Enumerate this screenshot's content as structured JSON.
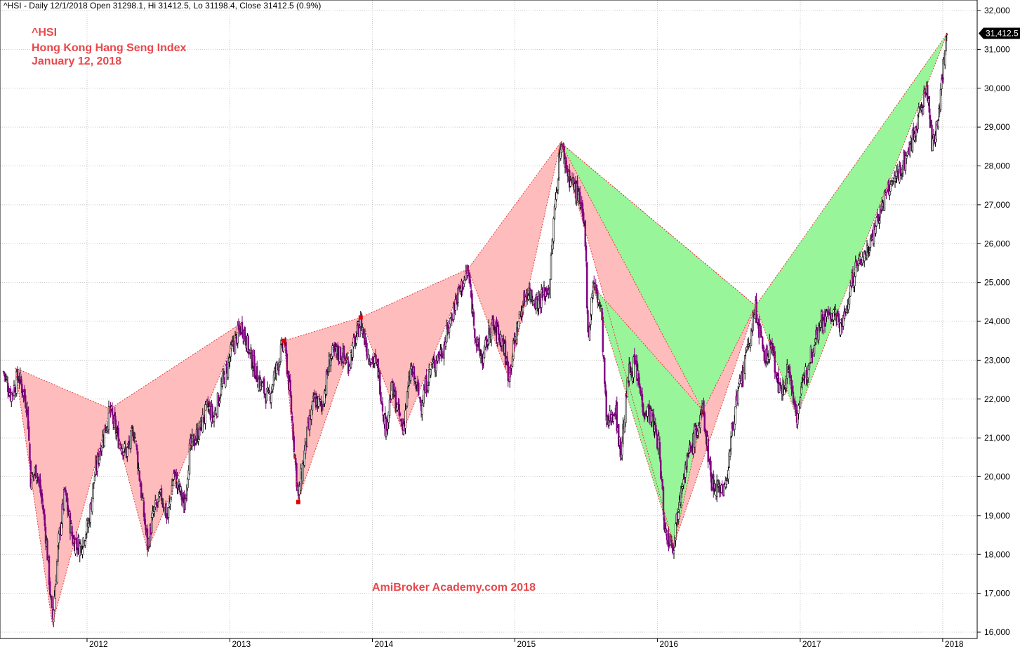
{
  "header": {
    "text": "^HSI - Daily 12/1/2018 Open 31298.1, Hi 31412.5, Lo 31198.4, Close 31412.5 (0.9%)"
  },
  "annotations": {
    "symbol": "^HSI",
    "name": "Hong Kong Hang Seng Index",
    "date": "January 12, 2018"
  },
  "watermark": "AmiBroker Academy.com 2018",
  "colors": {
    "bearish_fill": "#ffbcbc",
    "bullish_fill": "#99f599",
    "price_down": "#800080",
    "price_up": "#000000",
    "pattern_line": "#e03030",
    "grid": "#c8c8c8",
    "text_accent": "#e8484c"
  },
  "chart_data": {
    "type": "candlestick",
    "title": "",
    "xlabel": "",
    "ylabel": "",
    "ylim": [
      16000,
      32000
    ],
    "grid": true,
    "x_ticks": [
      "2012",
      "2013",
      "2014",
      "2015",
      "2016",
      "2017",
      "2018"
    ],
    "y_ticks": [
      "16,000",
      "17,000",
      "18,000",
      "19,000",
      "20,000",
      "21,000",
      "22,000",
      "23,000",
      "24,000",
      "25,000",
      "26,000",
      "27,000",
      "28,000",
      "29,000",
      "30,000",
      "31,000",
      "32,000"
    ],
    "last_close_label": "31,412.5",
    "last_close": 31412.5,
    "price_path": [
      [
        "2011-06-01",
        22700
      ],
      [
        "2011-06-20",
        22100
      ],
      [
        "2011-07-10",
        22600
      ],
      [
        "2011-08-01",
        21800
      ],
      [
        "2011-08-10",
        19900
      ],
      [
        "2011-08-25",
        20200
      ],
      [
        "2011-09-10",
        19200
      ],
      [
        "2011-09-20",
        18200
      ],
      [
        "2011-10-04",
        16250
      ],
      [
        "2011-10-20",
        18300
      ],
      [
        "2011-11-05",
        19600
      ],
      [
        "2011-11-25",
        18400
      ],
      [
        "2011-12-15",
        18200
      ],
      [
        "2012-01-05",
        18800
      ],
      [
        "2012-01-20",
        20000
      ],
      [
        "2012-02-05",
        20800
      ],
      [
        "2012-02-29",
        21700
      ],
      [
        "2012-03-20",
        21000
      ],
      [
        "2012-04-10",
        20600
      ],
      [
        "2012-05-01",
        21200
      ],
      [
        "2012-05-20",
        19500
      ],
      [
        "2012-06-04",
        18200
      ],
      [
        "2012-06-20",
        19100
      ],
      [
        "2012-07-10",
        19500
      ],
      [
        "2012-07-25",
        18900
      ],
      [
        "2012-08-10",
        20100
      ],
      [
        "2012-08-30",
        19500
      ],
      [
        "2012-09-06",
        19200
      ],
      [
        "2012-09-20",
        20700
      ],
      [
        "2012-10-15",
        21200
      ],
      [
        "2012-11-05",
        21800
      ],
      [
        "2012-11-20",
        21500
      ],
      [
        "2012-12-10",
        22300
      ],
      [
        "2013-01-10",
        23400
      ],
      [
        "2013-02-01",
        23900
      ],
      [
        "2013-02-20",
        23200
      ],
      [
        "2013-03-15",
        22500
      ],
      [
        "2013-04-10",
        22000
      ],
      [
        "2013-04-25",
        22600
      ],
      [
        "2013-05-20",
        23500
      ],
      [
        "2013-06-05",
        22000
      ],
      [
        "2013-06-25",
        19430
      ],
      [
        "2013-07-15",
        20900
      ],
      [
        "2013-08-05",
        22000
      ],
      [
        "2013-08-25",
        21800
      ],
      [
        "2013-09-15",
        23100
      ],
      [
        "2013-10-10",
        23200
      ],
      [
        "2013-11-01",
        22900
      ],
      [
        "2013-12-02",
        24000
      ],
      [
        "2013-12-20",
        23200
      ],
      [
        "2014-01-15",
        22800
      ],
      [
        "2014-02-04",
        21200
      ],
      [
        "2014-02-20",
        22300
      ],
      [
        "2014-03-20",
        21200
      ],
      [
        "2014-04-10",
        22800
      ],
      [
        "2014-05-05",
        21900
      ],
      [
        "2014-06-01",
        22800
      ],
      [
        "2014-07-01",
        23300
      ],
      [
        "2014-08-01",
        24500
      ],
      [
        "2014-09-03",
        25300
      ],
      [
        "2014-09-25",
        23400
      ],
      [
        "2014-10-10",
        23000
      ],
      [
        "2014-11-01",
        23900
      ],
      [
        "2014-12-01",
        23500
      ],
      [
        "2014-12-16",
        22600
      ],
      [
        "2015-01-10",
        24000
      ],
      [
        "2015-02-01",
        24800
      ],
      [
        "2015-03-01",
        24500
      ],
      [
        "2015-03-31",
        24900
      ],
      [
        "2015-04-10",
        26500
      ],
      [
        "2015-04-28",
        28600
      ],
      [
        "2015-05-20",
        27700
      ],
      [
        "2015-06-10",
        27300
      ],
      [
        "2015-06-30",
        26300
      ],
      [
        "2015-07-08",
        23500
      ],
      [
        "2015-07-20",
        25000
      ],
      [
        "2015-08-10",
        24300
      ],
      [
        "2015-08-24",
        21300
      ],
      [
        "2015-09-15",
        21800
      ],
      [
        "2015-09-29",
        20550
      ],
      [
        "2015-10-20",
        22700
      ],
      [
        "2015-11-05",
        22900
      ],
      [
        "2015-11-25",
        21800
      ],
      [
        "2015-12-15",
        21600
      ],
      [
        "2016-01-05",
        20800
      ],
      [
        "2016-01-21",
        18550
      ],
      [
        "2016-02-12",
        18300
      ],
      [
        "2016-03-01",
        19800
      ],
      [
        "2016-03-20",
        20500
      ],
      [
        "2016-04-27",
        21700
      ],
      [
        "2016-05-20",
        19800
      ],
      [
        "2016-06-24",
        19700
      ],
      [
        "2016-07-15",
        21600
      ],
      [
        "2016-08-10",
        22800
      ],
      [
        "2016-09-09",
        24350
      ],
      [
        "2016-09-30",
        23000
      ],
      [
        "2016-10-20",
        23400
      ],
      [
        "2016-11-10",
        22100
      ],
      [
        "2016-12-01",
        22800
      ],
      [
        "2016-12-23",
        21600
      ],
      [
        "2017-01-20",
        22900
      ],
      [
        "2017-02-20",
        24000
      ],
      [
        "2017-03-20",
        24200
      ],
      [
        "2017-04-20",
        23900
      ],
      [
        "2017-05-20",
        25300
      ],
      [
        "2017-06-20",
        25800
      ],
      [
        "2017-07-20",
        26700
      ],
      [
        "2017-08-15",
        27400
      ],
      [
        "2017-09-10",
        27800
      ],
      [
        "2017-10-10",
        28500
      ],
      [
        "2017-11-01",
        29300
      ],
      [
        "2017-11-22",
        30000
      ],
      [
        "2017-12-05",
        28500
      ],
      [
        "2017-12-20",
        29300
      ],
      [
        "2018-01-02",
        30500
      ],
      [
        "2018-01-12",
        31412
      ]
    ],
    "pattern_zigzag": [
      [
        "2011-07-01",
        22800
      ],
      [
        "2011-10-04",
        16200
      ],
      [
        "2012-02-29",
        21750
      ],
      [
        "2012-06-04",
        18100
      ],
      [
        "2013-01-30",
        23950
      ],
      [
        "2013-06-25",
        19400
      ],
      [
        "2013-12-02",
        24100
      ],
      [
        "2014-03-20",
        21150
      ],
      [
        "2014-09-03",
        25350
      ],
      [
        "2014-12-16",
        22550
      ],
      [
        "2015-04-28",
        28600
      ],
      [
        "2015-08-24",
        21150
      ],
      [
        "2016-02-12",
        18250
      ],
      [
        "2016-04-27",
        21700
      ],
      [
        "2016-09-09",
        24400
      ],
      [
        "2016-12-23",
        21550
      ],
      [
        "2018-01-12",
        31400
      ]
    ],
    "patterns": [
      {
        "type": "bearish",
        "points": [
          [
            "2011-07-01",
            22800
          ],
          [
            "2011-10-04",
            16200
          ],
          [
            "2012-02-29",
            21750
          ]
        ]
      },
      {
        "type": "bearish",
        "points": [
          [
            "2012-02-29",
            21750
          ],
          [
            "2012-06-04",
            18100
          ],
          [
            "2013-01-30",
            23950
          ]
        ]
      },
      {
        "type": "bearish",
        "points": [
          [
            "2013-05-20",
            23500
          ],
          [
            "2013-06-25",
            19400
          ],
          [
            "2013-12-02",
            24100
          ]
        ]
      },
      {
        "type": "bearish",
        "points": [
          [
            "2013-12-02",
            24100
          ],
          [
            "2014-03-20",
            21150
          ],
          [
            "2014-09-03",
            25350
          ]
        ]
      },
      {
        "type": "bearish",
        "points": [
          [
            "2014-09-03",
            25350
          ],
          [
            "2014-12-16",
            22550
          ],
          [
            "2015-04-28",
            28600
          ]
        ]
      },
      {
        "type": "bearish",
        "points": [
          [
            "2015-04-28",
            28600
          ],
          [
            "2016-02-12",
            18250
          ],
          [
            "2016-09-09",
            24400
          ]
        ]
      },
      {
        "type": "bullish",
        "points": [
          [
            "2015-04-28",
            28600
          ],
          [
            "2016-04-27",
            21700
          ],
          [
            "2016-09-09",
            24400
          ]
        ]
      },
      {
        "type": "bullish",
        "points": [
          [
            "2015-07-20",
            24900
          ],
          [
            "2016-02-12",
            18200
          ],
          [
            "2016-04-27",
            21700
          ]
        ]
      },
      {
        "type": "bullish",
        "points": [
          [
            "2016-09-09",
            24400
          ],
          [
            "2016-12-23",
            21550
          ],
          [
            "2018-01-12",
            31400
          ]
        ]
      }
    ],
    "markers": [
      [
        "2013-05-20",
        23500
      ],
      [
        "2013-06-25",
        19350
      ],
      [
        "2013-12-02",
        24100
      ]
    ]
  }
}
